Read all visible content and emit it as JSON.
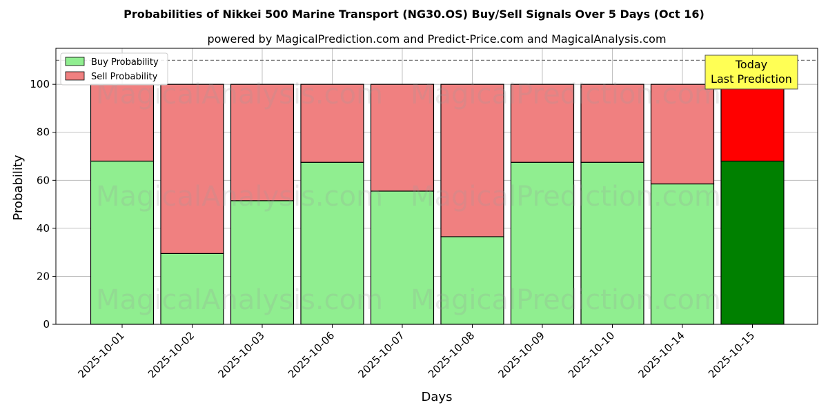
{
  "title": "Probabilities of Nikkei 500 Marine Transport (NG30.OS) Buy/Sell Signals Over 5 Days (Oct 16)",
  "subtitle": "powered by MagicalPrediction.com and Predict-Price.com and MagicalAnalysis.com",
  "watermarks": [
    "MagicalAnalysis.com",
    "MagicalPrediction.com"
  ],
  "annotation": {
    "line1": "Today",
    "line2": "Last Prediction"
  },
  "colors": {
    "buy": "#90ee90",
    "sell": "#f08080",
    "buy_highlight": "#008000",
    "sell_highlight": "#ff0000",
    "annotation_bg": "#ffff55"
  },
  "chart_data": {
    "type": "bar",
    "stacked": true,
    "title": "Probabilities of Nikkei 500 Marine Transport (NG30.OS) Buy/Sell Signals Over 5 Days (Oct 16)",
    "xlabel": "Days",
    "ylabel": "Probability",
    "ylim": [
      0,
      115
    ],
    "yticks": [
      0,
      20,
      40,
      60,
      80,
      100
    ],
    "reference_line": 110,
    "grid": true,
    "legend_position": "top-left",
    "categories": [
      "2025-10-01",
      "2025-10-02",
      "2025-10-03",
      "2025-10-06",
      "2025-10-07",
      "2025-10-08",
      "2025-10-09",
      "2025-10-10",
      "2025-10-14",
      "2025-10-15"
    ],
    "series": [
      {
        "name": "Buy Probability",
        "values": [
          68,
          29.5,
          51.5,
          67.5,
          55.5,
          36.5,
          67.5,
          67.5,
          58.5,
          68
        ]
      },
      {
        "name": "Sell Probability",
        "values": [
          32,
          70.5,
          48.5,
          32.5,
          44.5,
          63.5,
          32.5,
          32.5,
          41.5,
          32
        ]
      }
    ],
    "highlighted_category": "2025-10-15"
  }
}
